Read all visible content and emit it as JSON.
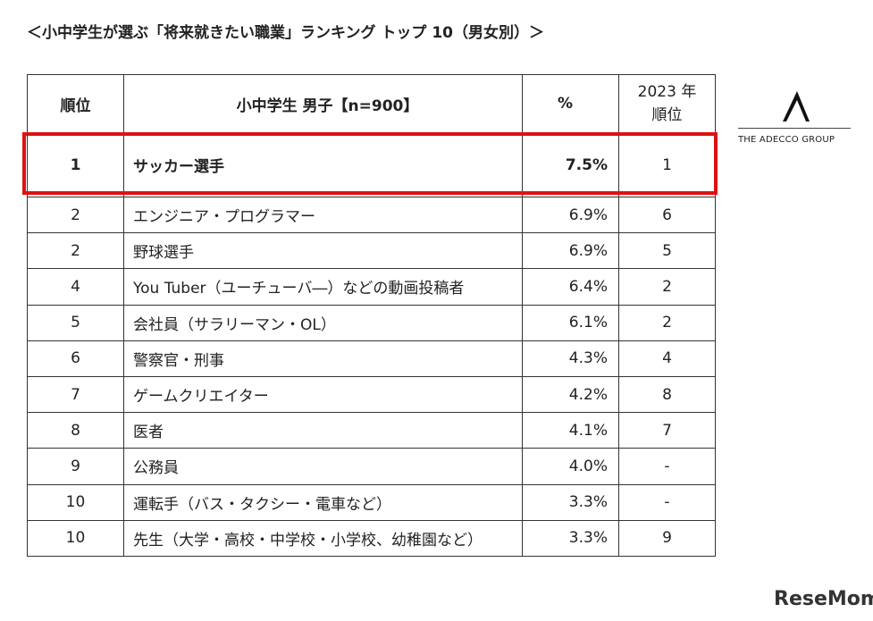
{
  "title": "＜小中学生が選ぶ「将来就きたい職業」ランキング トップ 10（男女別）＞",
  "table": {
    "header": [
      "順位",
      "小中学生 男子【n=900】",
      "%",
      [
        "2023 年",
        "順位"
      ]
    ],
    "rows": [
      [
        "1",
        "サッカー選手",
        "7.5%",
        "1"
      ],
      [
        "2",
        "エンジニア・プログラマー",
        "6.9%",
        "6"
      ],
      [
        "2",
        "野球選手",
        "6.9%",
        "5"
      ],
      [
        "4",
        "You Tuber（ユーチューバ―）などの動画投稿者",
        "6.4%",
        "2"
      ],
      [
        "5",
        "会社員（サラリーマン・OL）",
        "6.1%",
        "2"
      ],
      [
        "6",
        "警察官・刑事",
        "4.3%",
        "4"
      ],
      [
        "7",
        "ゲームクリエイター",
        "4.2%",
        "8"
      ],
      [
        "8",
        "医者",
        "4.1%",
        "7"
      ],
      [
        "9",
        "公務員",
        "4.0%",
        "-"
      ],
      [
        "10",
        "運転手（バス・タクシー・電車など）",
        "3.3%",
        "-"
      ],
      [
        "10",
        "先生（大学・高校・中学校・小学校、幼稚園など）",
        "3.3%",
        "9"
      ]
    ]
  },
  "logo": "THE ADECCO GROUP",
  "watermark": "ReseMom"
}
